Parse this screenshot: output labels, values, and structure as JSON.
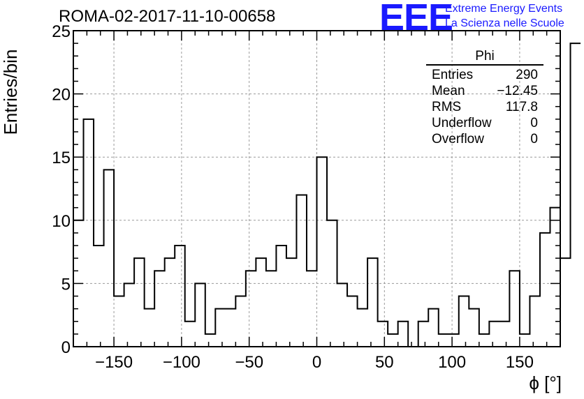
{
  "title": "ROMA-02-2017-11-10-00658",
  "logo": {
    "mark": "EEE",
    "line1": "Extreme Energy Events",
    "line2": "La Scienza nelle Scuole"
  },
  "stats": {
    "name": "Phi",
    "rows": [
      {
        "label": "Entries",
        "value": "290"
      },
      {
        "label": "Mean",
        "value": "−12.45"
      },
      {
        "label": "RMS",
        "value": "117.8"
      },
      {
        "label": "Underflow",
        "value": "0"
      },
      {
        "label": "Overflow",
        "value": "0"
      }
    ]
  },
  "chart_data": {
    "type": "bar",
    "histogram": true,
    "title": "ROMA-02-2017-11-10-00658",
    "xlabel": "ϕ [°]",
    "ylabel": "Entries/bin",
    "xlim": [
      -180,
      180
    ],
    "ylim": [
      0,
      25
    ],
    "bin_width": 7.5,
    "grid": true,
    "x_ticks": [
      -150,
      -100,
      -50,
      0,
      50,
      100,
      150
    ],
    "x_tick_labels": [
      "−150",
      "−100",
      "−50",
      "0",
      "50",
      "100",
      "150"
    ],
    "y_ticks": [
      0,
      5,
      10,
      15,
      20,
      25
    ],
    "y_tick_labels": [
      "0",
      "5",
      "10",
      "15",
      "20",
      "25"
    ],
    "values": [
      10,
      18,
      8,
      14,
      4,
      5,
      7,
      3,
      6,
      7,
      8,
      2,
      5,
      1,
      3,
      3,
      4,
      6,
      7,
      6,
      8,
      7,
      12,
      6,
      15,
      10,
      5,
      4,
      3,
      7,
      2,
      1,
      2,
      0,
      2,
      3,
      1,
      1,
      4,
      3,
      1,
      2,
      2,
      6,
      1,
      4,
      9,
      11,
      7,
      24
    ]
  }
}
